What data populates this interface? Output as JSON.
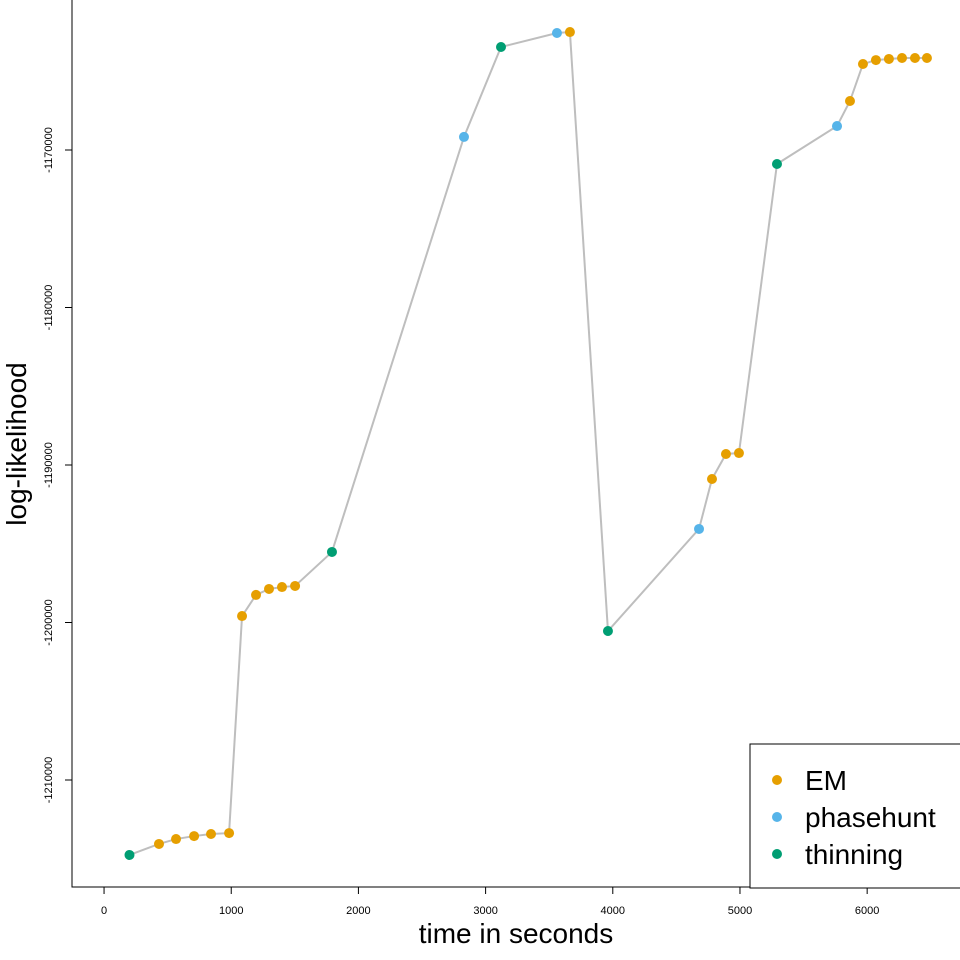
{
  "chart_data": {
    "type": "scatter",
    "title": "",
    "xlabel": "time in seconds",
    "ylabel": "log-likelihood",
    "xlim": [
      -252,
      6730
    ],
    "ylim": [
      -1216794,
      -1160476
    ],
    "xticks": [
      0,
      1000,
      2000,
      3000,
      4000,
      5000,
      6000
    ],
    "xtick_labels": [
      "0",
      "1000",
      "2000",
      "3000",
      "4000",
      "5000",
      "6000"
    ],
    "yticks": [
      -1170000,
      -1180000,
      -1190000,
      -1200000,
      -1210000
    ],
    "ytick_labels": [
      "-1170000",
      "-1180000",
      "-1190000",
      "-1200000",
      "-1210000"
    ],
    "grid": false,
    "legend_position": "bottom-right",
    "line_color": "#BEBEBE",
    "series": [
      {
        "name": "EM",
        "color": "#E69F00"
      },
      {
        "name": "phasehunt",
        "color": "#56B4E9"
      },
      {
        "name": "thinning",
        "color": "#009E73"
      }
    ],
    "points": [
      {
        "x": 200,
        "y": -1214760,
        "s": "thinning"
      },
      {
        "x": 432,
        "y": -1214060,
        "s": "EM"
      },
      {
        "x": 566,
        "y": -1213750,
        "s": "EM"
      },
      {
        "x": 708,
        "y": -1213560,
        "s": "EM"
      },
      {
        "x": 841,
        "y": -1213430,
        "s": "EM"
      },
      {
        "x": 983,
        "y": -1213370,
        "s": "EM"
      },
      {
        "x": 1085,
        "y": -1199590,
        "s": "EM"
      },
      {
        "x": 1195,
        "y": -1198250,
        "s": "EM"
      },
      {
        "x": 1297,
        "y": -1197870,
        "s": "EM"
      },
      {
        "x": 1399,
        "y": -1197750,
        "s": "EM"
      },
      {
        "x": 1502,
        "y": -1197680,
        "s": "EM"
      },
      {
        "x": 1792,
        "y": -1195520,
        "s": "thinning"
      },
      {
        "x": 2830,
        "y": -1169170,
        "s": "phasehunt"
      },
      {
        "x": 3121,
        "y": -1163460,
        "s": "thinning"
      },
      {
        "x": 3561,
        "y": -1162570,
        "s": "phasehunt"
      },
      {
        "x": 3663,
        "y": -1162510,
        "s": "EM"
      },
      {
        "x": 3962,
        "y": -1200540,
        "s": "thinning"
      },
      {
        "x": 4678,
        "y": -1194060,
        "s": "phasehunt"
      },
      {
        "x": 4780,
        "y": -1190890,
        "s": "EM"
      },
      {
        "x": 4890,
        "y": -1189300,
        "s": "EM"
      },
      {
        "x": 4992,
        "y": -1189240,
        "s": "EM"
      },
      {
        "x": 5291,
        "y": -1170890,
        "s": "thinning"
      },
      {
        "x": 5763,
        "y": -1168480,
        "s": "phasehunt"
      },
      {
        "x": 5865,
        "y": -1166890,
        "s": "EM"
      },
      {
        "x": 5967,
        "y": -1164540,
        "s": "EM"
      },
      {
        "x": 6069,
        "y": -1164290,
        "s": "EM"
      },
      {
        "x": 6171,
        "y": -1164220,
        "s": "EM"
      },
      {
        "x": 6274,
        "y": -1164160,
        "s": "EM"
      },
      {
        "x": 6376,
        "y": -1164160,
        "s": "EM"
      },
      {
        "x": 6470,
        "y": -1164160,
        "s": "EM"
      }
    ]
  }
}
